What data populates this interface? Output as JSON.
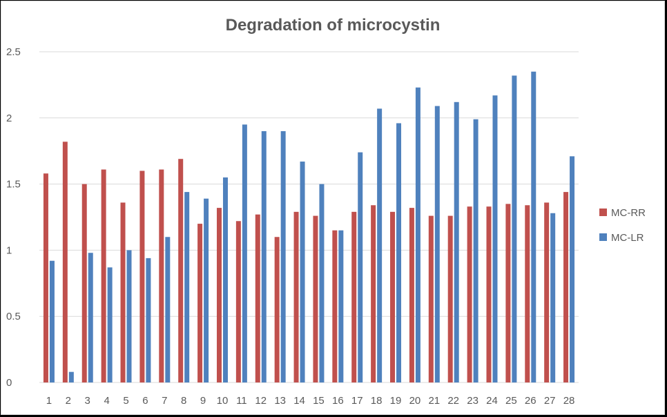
{
  "chart_data": {
    "type": "bar",
    "title": "Degradation of microcystin",
    "xlabel": "",
    "ylabel": "",
    "ylim": [
      0,
      2.5
    ],
    "yticks": [
      "0",
      "0.5",
      "1",
      "1.5",
      "2",
      "2.5"
    ],
    "grid": true,
    "legend_position": "right",
    "categories": [
      "1",
      "2",
      "3",
      "4",
      "5",
      "6",
      "7",
      "8",
      "9",
      "10",
      "11",
      "12",
      "13",
      "14",
      "15",
      "16",
      "17",
      "18",
      "19",
      "20",
      "21",
      "22",
      "23",
      "24",
      "25",
      "26",
      "27",
      "28"
    ],
    "series": [
      {
        "name": "MC-RR",
        "color": "#c0504d",
        "values": [
          1.58,
          1.82,
          1.5,
          1.61,
          1.36,
          1.6,
          1.61,
          1.69,
          1.2,
          1.32,
          1.22,
          1.27,
          1.1,
          1.29,
          1.26,
          1.15,
          1.29,
          1.34,
          1.29,
          1.32,
          1.26,
          1.26,
          1.33,
          1.33,
          1.35,
          1.34,
          1.36,
          1.44
        ]
      },
      {
        "name": "MC-LR",
        "color": "#4f81bd",
        "values": [
          0.92,
          0.08,
          0.98,
          0.87,
          1.0,
          0.94,
          1.1,
          1.44,
          1.39,
          1.55,
          1.95,
          1.9,
          1.9,
          1.67,
          1.5,
          1.15,
          1.74,
          2.07,
          1.96,
          2.23,
          2.09,
          2.12,
          1.99,
          2.17,
          2.32,
          2.35,
          1.28,
          1.71
        ]
      }
    ]
  }
}
